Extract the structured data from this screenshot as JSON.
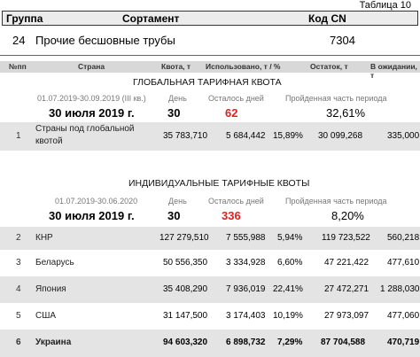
{
  "caption": "Таблица 10",
  "top_header": {
    "group": "Группа",
    "assortment": "Сортамент",
    "cn_code": "Код CN"
  },
  "product": {
    "group": "24",
    "name": "Прочие бесшовные трубы",
    "code": "7304"
  },
  "columns": {
    "no": "№пп",
    "country": "Страна",
    "quota": "Квота, т",
    "used": "Использовано, т / %",
    "remaining": "Остаток, т",
    "pending": "В ожидании, т"
  },
  "global": {
    "title": "ГЛОБАЛЬНАЯ ТАРИФНАЯ КВОТА",
    "period": "01.07.2019-30.09.2019 (III кв.)",
    "date": "30 июля 2019 г.",
    "day_label": "День",
    "day_value": "30",
    "days_left_label": "Осталось дней",
    "days_left_value": "62",
    "elapsed_label": "Пройденная часть периода",
    "elapsed_value": "32,61%",
    "rows": [
      {
        "no": "1",
        "country_line1": "Страны под глобальной",
        "country_line2": "квотой",
        "quota": "35 783,710",
        "used": "5 684,442",
        "used_pct": "15,89%",
        "remaining": "30 099,268",
        "pending": "335,000"
      }
    ]
  },
  "individual": {
    "title": "ИНДИВИДУАЛЬНЫЕ ТАРИФНЫЕ КВОТЫ",
    "period": "01.07.2019-30.06.2020",
    "date": "30 июля 2019 г.",
    "day_label": "День",
    "day_value": "30",
    "days_left_label": "Осталось дней",
    "days_left_value": "336",
    "elapsed_label": "Пройденная часть периода",
    "elapsed_value": "8,20%",
    "rows": [
      {
        "no": "2",
        "country": "КНР",
        "quota": "127 279,510",
        "used": "7 555,988",
        "used_pct": "5,94%",
        "remaining": "119 723,522",
        "pending": "560,218"
      },
      {
        "no": "3",
        "country": "Беларусь",
        "quota": "50 556,350",
        "used": "3 334,928",
        "used_pct": "6,60%",
        "remaining": "47 221,422",
        "pending": "477,610"
      },
      {
        "no": "4",
        "country": "Япония",
        "quota": "35 408,290",
        "used": "7 936,019",
        "used_pct": "22,41%",
        "remaining": "27 472,271",
        "pending": "1 288,030"
      },
      {
        "no": "5",
        "country": "США",
        "quota": "31 147,500",
        "used": "3 174,403",
        "used_pct": "10,19%",
        "remaining": "27 973,097",
        "pending": "477,060"
      },
      {
        "no": "6",
        "country": "Украина",
        "quota": "94 603,320",
        "used": "6 898,732",
        "used_pct": "7,29%",
        "remaining": "87 704,588",
        "pending": "470,719"
      }
    ]
  }
}
